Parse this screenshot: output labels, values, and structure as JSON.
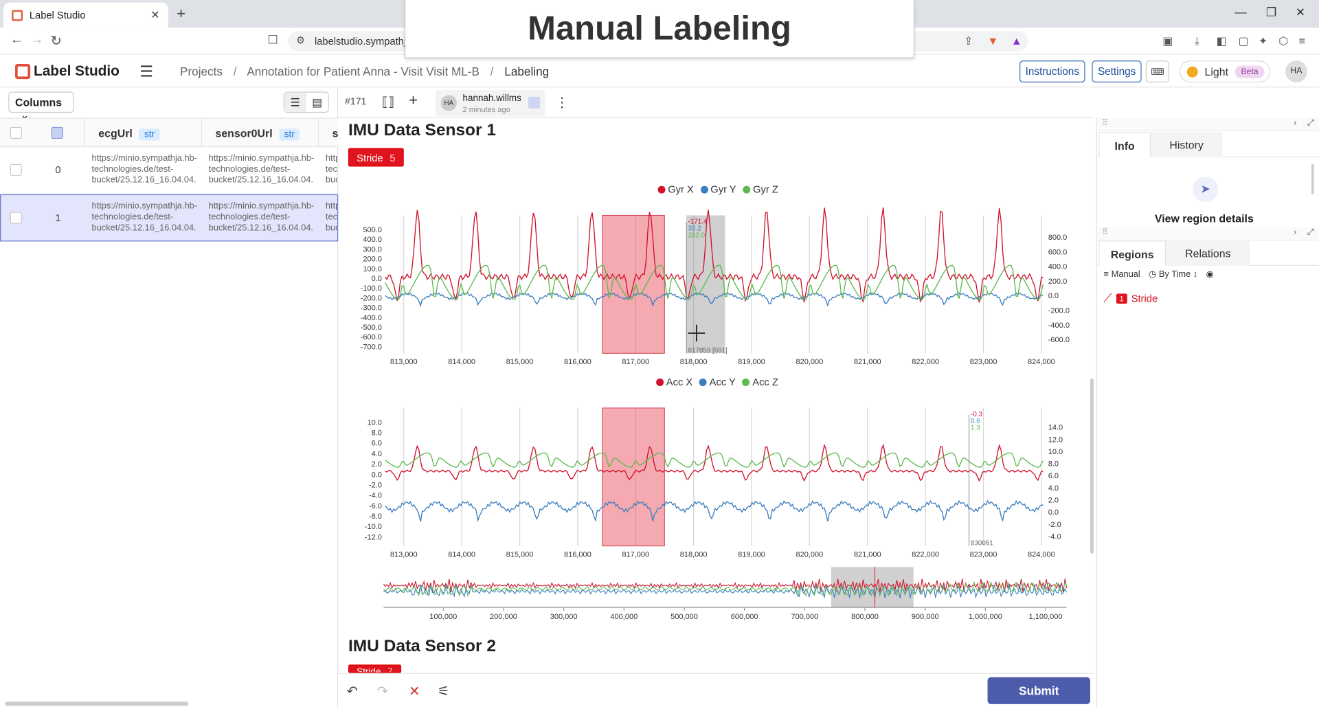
{
  "browser": {
    "tab_title": "Label Studio",
    "url": "labelstudio.sympathja",
    "overlay_title": "Manual Labeling"
  },
  "header": {
    "logo": "Label Studio",
    "breadcrumbs": [
      "Projects",
      "Annotation for Patient Anna - Visit Visit ML-B",
      "Labeling"
    ],
    "instructions_label": "Instructions",
    "settings_label": "Settings",
    "theme_label": "Light",
    "beta_label": "Beta",
    "user_initials": "HA"
  },
  "table": {
    "columns_label": "Columns",
    "columns": [
      {
        "name": "ecgUrl",
        "type": "str"
      },
      {
        "name": "sensor0Url",
        "type": "str"
      },
      {
        "name": "s",
        "type": ""
      }
    ],
    "rows": [
      {
        "index": "0",
        "cells": [
          "https://minio.sympathja.hb-technologies.de/test-bucket/25.12.16_16.04.04.",
          "https://minio.sympathja.hb-technologies.de/test-bucket/25.12.16_16.04.04.",
          "https://minio.sympathja.hb-technologies.de/test-bucket/25.12.16_16.04.04."
        ]
      },
      {
        "index": "1",
        "cells": [
          "https://minio.sympathja.hb-technologies.de/test-bucket/25.12.16_16.04.04.",
          "https://minio.sympathja.hb-technologies.de/test-bucket/25.12.16_16.04.04.",
          "https://minio.sympathja.hb-technologies.de/test-bucket/25.12.16_16.04.04."
        ]
      }
    ],
    "selected_row": 1
  },
  "annotation": {
    "task_id": "#171",
    "annotator_initials": "HA",
    "annotator": "hannah.willms",
    "time_ago": "2 minutes ago"
  },
  "sensor1": {
    "title": "IMU Data Sensor 1",
    "label": {
      "name": "Stride",
      "count": "5",
      "color": "#e0141e"
    },
    "gyr": {
      "legend": [
        {
          "name": "Gyr X",
          "color": "#d1122c"
        },
        {
          "name": "Gyr Y",
          "color": "#3c7fc1"
        },
        {
          "name": "Gyr Z",
          "color": "#5db94f"
        }
      ],
      "xticks": [
        "813,000",
        "814,000",
        "815,000",
        "816,000",
        "817,000",
        "818,000",
        "819,000",
        "820,000",
        "821,000",
        "822,000",
        "823,000",
        "824,000"
      ],
      "yticks_left": [
        "500.0",
        "400.0",
        "300.0",
        "200.0",
        "100.0",
        "0.0",
        "-100.0",
        "-200.0",
        "-300.0",
        "-400.0",
        "-500.0",
        "-600.0",
        "-700.0"
      ],
      "yticks_right": [
        "800.0",
        "600.0",
        "400.0",
        "200.0",
        "0.0",
        "-200.0",
        "-400.0",
        "-600.0"
      ],
      "cursor_values": [
        "-171.4",
        "35.2",
        "282.0"
      ],
      "cursor_label": "817859 [691]"
    },
    "acc": {
      "legend": [
        {
          "name": "Acc X",
          "color": "#d1122c"
        },
        {
          "name": "Acc Y",
          "color": "#3c7fc1"
        },
        {
          "name": "Acc Z",
          "color": "#5db94f"
        }
      ],
      "xticks": [
        "813,000",
        "814,000",
        "815,000",
        "816,000",
        "817,000",
        "818,000",
        "819,000",
        "820,000",
        "821,000",
        "822,000",
        "823,000",
        "824,000"
      ],
      "yticks_left": [
        "10.0",
        "8.0",
        "6.0",
        "4.0",
        "2.0",
        "0.0",
        "-2.0",
        "-4.0",
        "-6.0",
        "-8.0",
        "-10.0",
        "-12.0"
      ],
      "yticks_right": [
        "14.0",
        "12.0",
        "10.0",
        "8.0",
        "6.0",
        "4.0",
        "2.0",
        "0.0",
        "-2.0",
        "-4.0"
      ],
      "cursor_values": [
        "-0.3",
        "0.6",
        "1.3"
      ],
      "cursor_label": "830061"
    },
    "overview": {
      "xticks": [
        "100,000",
        "200,000",
        "300,000",
        "400,000",
        "500,000",
        "600,000",
        "700,000",
        "800,000",
        "900,000",
        "1,000,000",
        "1,100,000"
      ]
    }
  },
  "sensor2": {
    "title": "IMU Data Sensor 2",
    "label": {
      "name": "Stride",
      "count": "7"
    }
  },
  "bottombar": {
    "submit_label": "Submit"
  },
  "right_panel": {
    "top_tabs": [
      "Info",
      "History"
    ],
    "view_region_details": "View region details",
    "bottom_tabs": [
      "Regions",
      "Relations"
    ],
    "tools": {
      "manual": "Manual",
      "by_time": "By Time"
    },
    "regions": [
      {
        "num": "1",
        "label": "Stride"
      }
    ]
  }
}
